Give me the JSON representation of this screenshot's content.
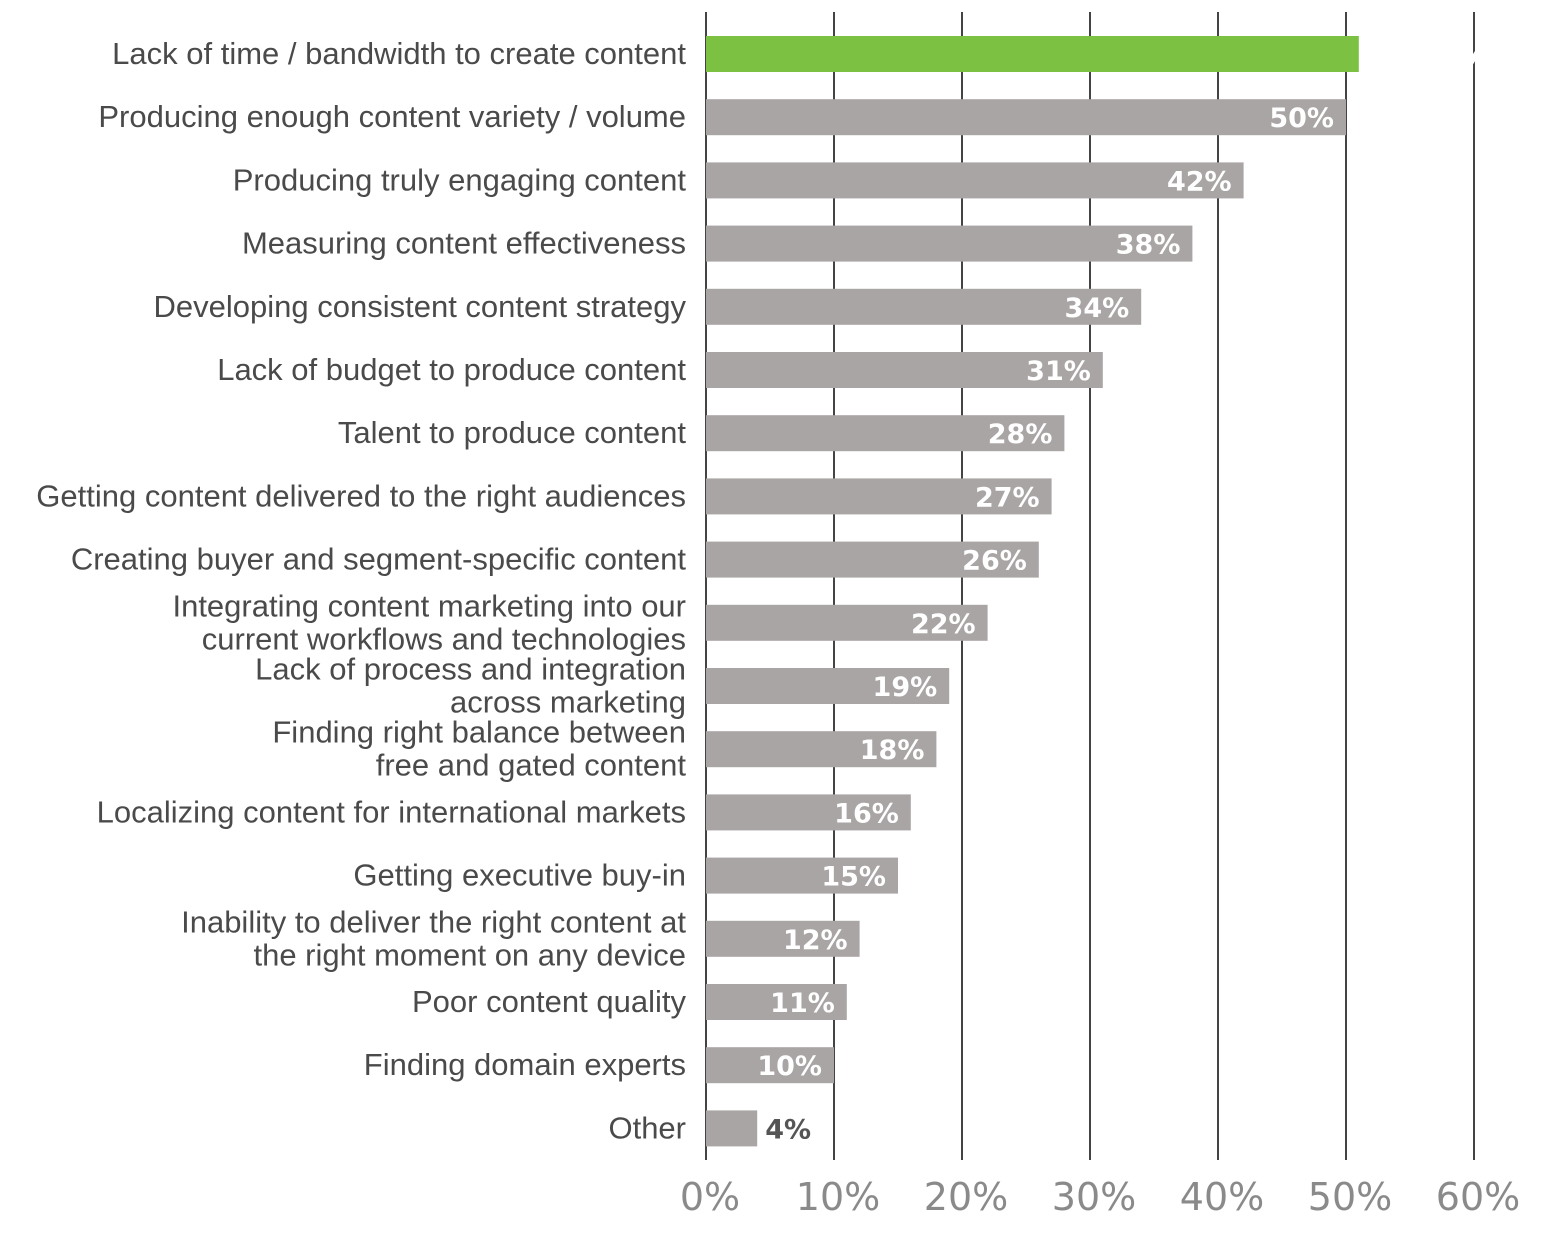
{
  "chart_data": {
    "type": "bar",
    "orientation": "horizontal",
    "categories": [
      [
        "Lack of time / bandwidth to create content"
      ],
      [
        "Producing enough content variety / volume"
      ],
      [
        "Producing truly engaging content"
      ],
      [
        "Measuring content effectiveness"
      ],
      [
        "Developing consistent content strategy"
      ],
      [
        "Lack of budget to produce content"
      ],
      [
        "Talent to produce content"
      ],
      [
        "Getting content delivered to the right audiences"
      ],
      [
        "Creating buyer and segment-specific content"
      ],
      [
        "Integrating content marketing into our",
        "current workflows and technologies"
      ],
      [
        "Lack of process and integration",
        "across marketing"
      ],
      [
        "Finding right balance between",
        "free and gated content"
      ],
      [
        "Localizing content for international markets"
      ],
      [
        "Getting executive buy-in"
      ],
      [
        "Inability to deliver the right content at",
        "the right moment on any device"
      ],
      [
        "Poor content quality"
      ],
      [
        "Finding domain experts"
      ],
      [
        "Other"
      ]
    ],
    "values": [
      51,
      50,
      42,
      38,
      34,
      31,
      28,
      27,
      26,
      22,
      19,
      18,
      16,
      15,
      12,
      11,
      10,
      4
    ],
    "value_labels": [
      "51%",
      "50%",
      "42%",
      "38%",
      "34%",
      "31%",
      "28%",
      "27%",
      "26%",
      "22%",
      "19%",
      "18%",
      "16%",
      "15%",
      "12%",
      "11%",
      "10%",
      "4%"
    ],
    "highlight_index": 0,
    "xlim": [
      0,
      60
    ],
    "x_ticks": [
      0,
      10,
      20,
      30,
      40,
      50,
      60
    ],
    "x_tick_labels": [
      "0%",
      "10%",
      "20%",
      "30%",
      "40%",
      "50%",
      "60%"
    ],
    "grid": "vertical",
    "title": "",
    "xlabel": "",
    "ylabel": ""
  },
  "colors": {
    "bar": "#aaa5a5",
    "highlight": "#7cc142",
    "grid": "#444444"
  }
}
